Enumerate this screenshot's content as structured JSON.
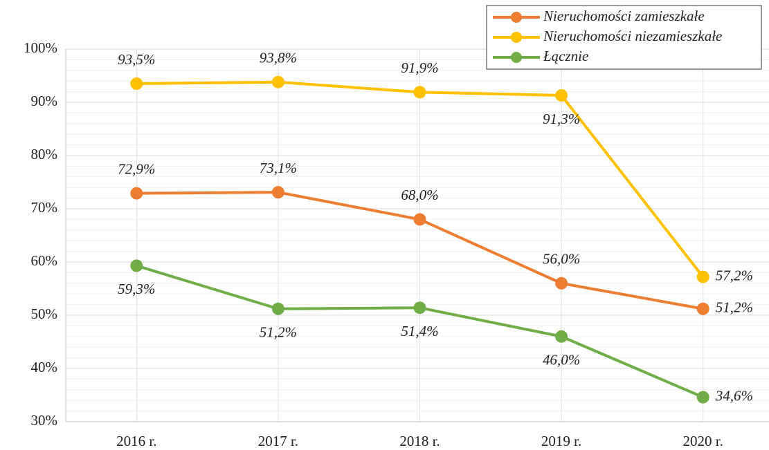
{
  "chart_data": {
    "type": "line",
    "categories": [
      "2016 r.",
      "2017 r.",
      "2018 r.",
      "2019 r.",
      "2020 r."
    ],
    "series": [
      {
        "name": "Nieruchomości zamieszkałe",
        "color": "#ed7d31",
        "values": [
          72.9,
          73.1,
          68.0,
          56.0,
          51.2
        ],
        "value_labels": [
          "72,9%",
          "73,1%",
          "68,0%",
          "56,0%",
          "51,2%"
        ]
      },
      {
        "name": "Nieruchomości niezamieszkałe",
        "color": "#ffc000",
        "values": [
          93.5,
          93.8,
          91.9,
          91.3,
          57.2
        ],
        "value_labels": [
          "93,5%",
          "93,8%",
          "91,9%",
          "91,3%",
          "57,2%"
        ]
      },
      {
        "name": "Łącznie",
        "color": "#70ad47",
        "values": [
          59.3,
          51.2,
          51.4,
          46.0,
          34.6
        ],
        "value_labels": [
          "59,3%",
          "51,2%",
          "51,4%",
          "46,0%",
          "34,6%"
        ]
      }
    ],
    "ylim": [
      30,
      100
    ],
    "yticks": [
      {
        "value": 30,
        "label": "30%"
      },
      {
        "value": 40,
        "label": "40%"
      },
      {
        "value": 50,
        "label": "50%"
      },
      {
        "value": 60,
        "label": "60%"
      },
      {
        "value": 70,
        "label": "70%"
      },
      {
        "value": 80,
        "label": "80%"
      },
      {
        "value": 90,
        "label": "90%"
      },
      {
        "value": 100,
        "label": "100%"
      }
    ],
    "grid": true,
    "legend": "top-right"
  }
}
